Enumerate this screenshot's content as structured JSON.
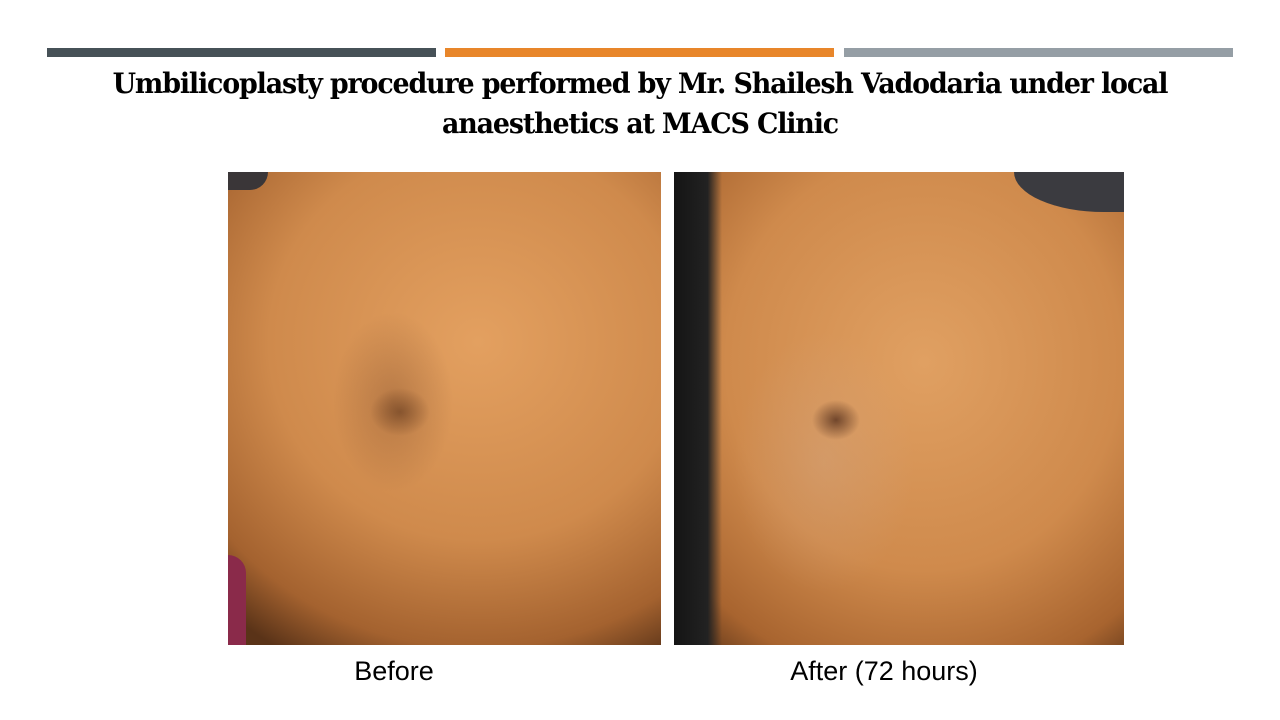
{
  "header": {
    "bars": [
      {
        "color": "#465157"
      },
      {
        "color": "#e8862a"
      },
      {
        "color": "#959ea5"
      }
    ],
    "title": "Umbilicoplasty procedure performed by Mr. Shailesh Vadodaria under local anaesthetics at MACS Clinic"
  },
  "photos": [
    {
      "caption": "Before"
    },
    {
      "caption": "After (72 hours)"
    }
  ]
}
